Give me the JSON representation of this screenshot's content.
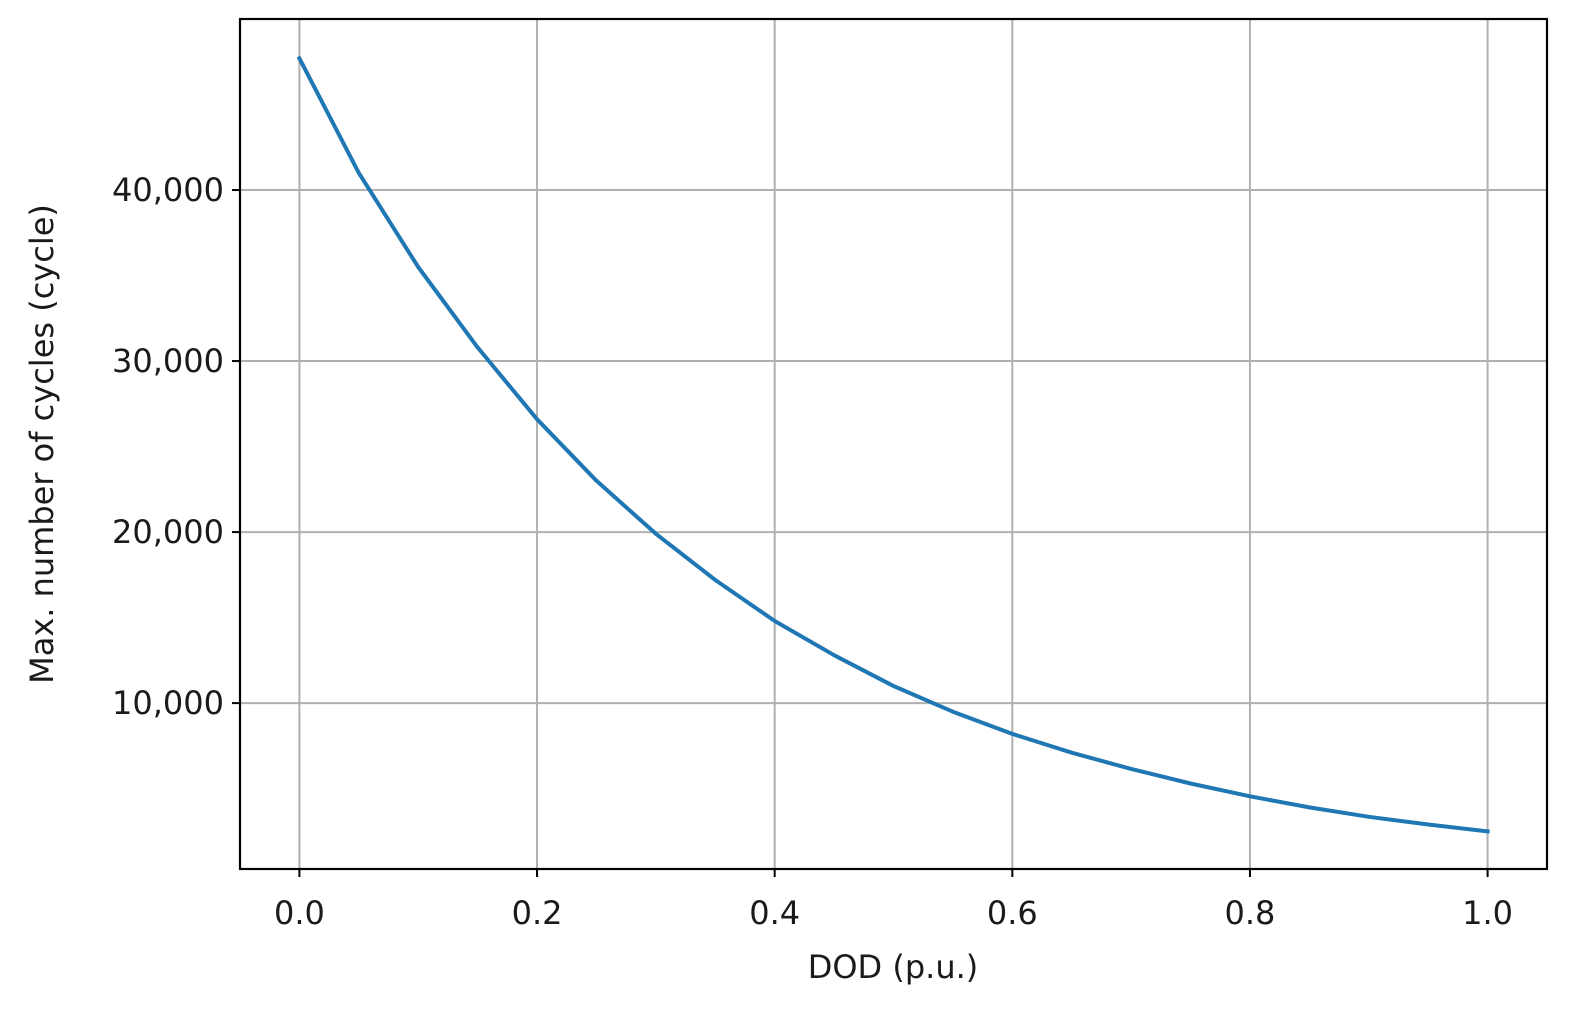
{
  "chart_data": {
    "type": "line",
    "title": "",
    "xlabel": "DOD (p.u.)",
    "ylabel": "Max. number of cycles (cycle)",
    "xlim": [
      -0.05,
      1.05
    ],
    "ylim": [
      300,
      50000
    ],
    "grid": true,
    "legend": "none",
    "x_ticks": [
      0.0,
      0.2,
      0.4,
      0.6,
      0.8,
      1.0
    ],
    "x_tick_labels": [
      "0.0",
      "0.2",
      "0.4",
      "0.6",
      "0.8",
      "1.0"
    ],
    "y_ticks": [
      10000,
      20000,
      30000,
      40000
    ],
    "y_tick_labels": [
      "10,000",
      "20,000",
      "30,000",
      "40,000"
    ],
    "series": [
      {
        "color": "#1f77b4",
        "x": [
          0.0,
          0.05,
          0.1,
          0.15,
          0.2,
          0.25,
          0.3,
          0.35,
          0.4,
          0.45,
          0.5,
          0.55,
          0.6,
          0.65,
          0.7,
          0.75,
          0.8,
          0.85,
          0.9,
          0.95,
          1.0
        ],
        "y": [
          47700,
          41000,
          35500,
          30800,
          26600,
          23000,
          19900,
          17200,
          14800,
          12800,
          11000,
          9500,
          8200,
          7100,
          6150,
          5300,
          4550,
          3900,
          3350,
          2900,
          2500
        ]
      }
    ]
  }
}
